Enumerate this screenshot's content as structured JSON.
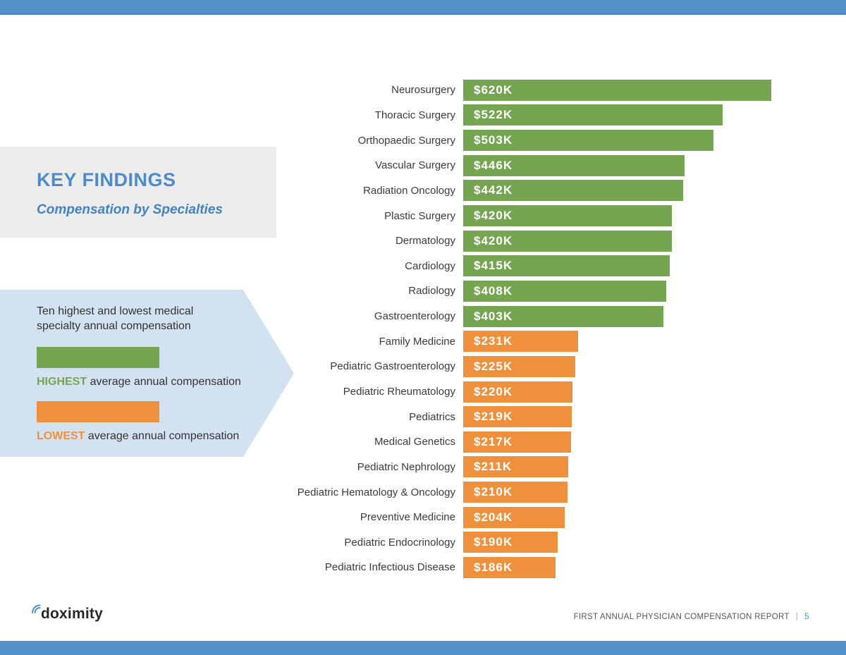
{
  "page": {
    "background": "#FFFFFF",
    "top_band_color": "#5590C9",
    "bottom_band_color": "#5590C9"
  },
  "key_findings": {
    "title": "KEY FINDINGS",
    "subtitle": "Compensation by Specialties",
    "title_color": "#4E8BC8",
    "subtitle_color": "#4183C4",
    "box_color": "#ECECEC"
  },
  "callout": {
    "bg_color": "#D3E2F1",
    "description_line1": "Ten highest and lowest medical",
    "description_line2": "specialty annual compensation",
    "legend": [
      {
        "word": "HIGHEST",
        "rest": " average annual compensation",
        "color": "#76A551"
      },
      {
        "word": "LOWEST",
        "rest": " average annual compensation",
        "color": "#EF913C"
      }
    ]
  },
  "chart_data": {
    "type": "bar",
    "orientation": "horizontal",
    "title": "Ten highest and lowest medical specialty annual compensation",
    "value_unit": "USD thousands per year",
    "xlim": [
      0,
      620
    ],
    "grid": false,
    "legend_position": "left-callout",
    "series": [
      {
        "name": "HIGHEST average annual compensation",
        "group": "highest",
        "color": "#76A551"
      },
      {
        "name": "LOWEST average annual compensation",
        "group": "lowest",
        "color": "#EF913C"
      }
    ],
    "bars": [
      {
        "label": "Neurosurgery",
        "value": 620,
        "display": "$620K",
        "group": "highest"
      },
      {
        "label": "Thoracic Surgery",
        "value": 522,
        "display": "$522K",
        "group": "highest"
      },
      {
        "label": "Orthopaedic Surgery",
        "value": 503,
        "display": "$503K",
        "group": "highest"
      },
      {
        "label": "Vascular Surgery",
        "value": 446,
        "display": "$446K",
        "group": "highest"
      },
      {
        "label": "Radiation Oncology",
        "value": 442,
        "display": "$442K",
        "group": "highest"
      },
      {
        "label": "Plastic Surgery",
        "value": 420,
        "display": "$420K",
        "group": "highest"
      },
      {
        "label": "Dermatology",
        "value": 420,
        "display": "$420K",
        "group": "highest"
      },
      {
        "label": "Cardiology",
        "value": 415,
        "display": "$415K",
        "group": "highest"
      },
      {
        "label": "Radiology",
        "value": 408,
        "display": "$408K",
        "group": "highest"
      },
      {
        "label": "Gastroenterology",
        "value": 403,
        "display": "$403K",
        "group": "highest"
      },
      {
        "label": "Family Medicine",
        "value": 231,
        "display": "$231K",
        "group": "lowest"
      },
      {
        "label": "Pediatric Gastroenterology",
        "value": 225,
        "display": "$225K",
        "group": "lowest"
      },
      {
        "label": "Pediatric Rheumatology",
        "value": 220,
        "display": "$220K",
        "group": "lowest"
      },
      {
        "label": "Pediatrics",
        "value": 219,
        "display": "$219K",
        "group": "lowest"
      },
      {
        "label": "Medical Genetics",
        "value": 217,
        "display": "$217K",
        "group": "lowest"
      },
      {
        "label": "Pediatric Nephrology",
        "value": 211,
        "display": "$211K",
        "group": "lowest"
      },
      {
        "label": "Pediatric Hematology & Oncology",
        "value": 210,
        "display": "$210K",
        "group": "lowest"
      },
      {
        "label": "Preventive Medicine",
        "value": 204,
        "display": "$204K",
        "group": "lowest"
      },
      {
        "label": "Pediatric Endocrinology",
        "value": 190,
        "display": "$190K",
        "group": "lowest"
      },
      {
        "label": "Pediatric Infectious Disease",
        "value": 186,
        "display": "$186K",
        "group": "lowest"
      }
    ]
  },
  "footer": {
    "logo_text": "doximity",
    "logo_mark_color": "#4A90CA",
    "report_title": "FIRST ANNUAL PHYSICIAN COMPENSATION REPORT",
    "divider": "|",
    "page_number": "5",
    "page_number_color": "#5590C9"
  }
}
